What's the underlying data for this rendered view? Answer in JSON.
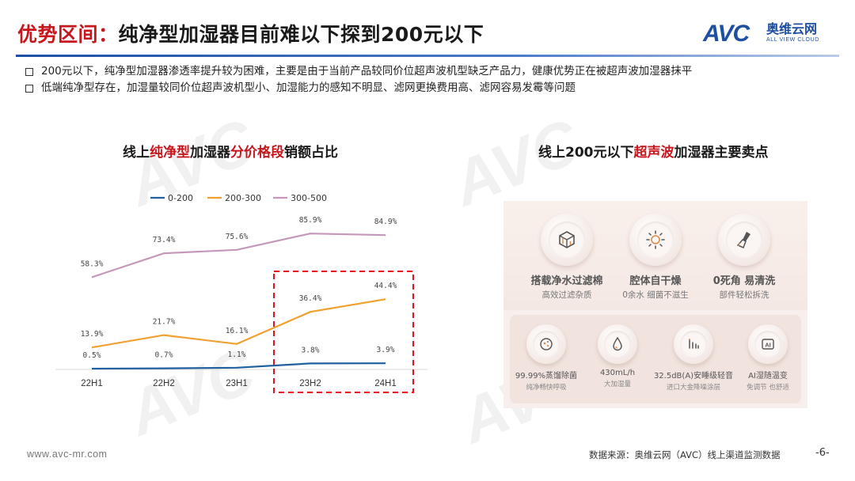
{
  "slide": {
    "title_prefix": "优势区间：",
    "title_main": "纯净型加湿器目前难以下探到200元以下",
    "bullets": [
      "200元以下，纯净型加湿器渗透率提升较为困难，主要是由于当前产品较同价位超声波机型缺乏产品力，健康优势正在被超声波加湿器抹平",
      "低端纯净型存在，加湿量较同价位超声波机型小、加湿能力的感知不明显、滤网更换费用高、滤网容易发霉等问题"
    ]
  },
  "logo": {
    "brand": "AVC",
    "cn": "奥维云网",
    "en": "ALL VIEW CLOUD"
  },
  "left_chart_title": {
    "p1": "线上",
    "p2": "纯净型",
    "p3": "加湿器",
    "p4": "分价格段",
    "p5": "销额占比"
  },
  "right_panel_title": {
    "p1": "线上200元以下",
    "p2": "超声波",
    "p3": "加湿器主要卖点"
  },
  "features_top": [
    {
      "icon": "cube-filter-icon",
      "title": "搭载净水过滤棉",
      "sub": "高效过滤杂质"
    },
    {
      "icon": "sun-dry-icon",
      "title": "腔体自干燥",
      "sub": "0余水 细菌不滋生"
    },
    {
      "icon": "brush-clean-icon",
      "title": "0死角 易清洗",
      "sub": "部件轻松拆洗"
    }
  ],
  "features_bottom": [
    {
      "icon": "sterilize-icon",
      "title": "99.99%蒸馏除菌",
      "sub": "纯净畅快呼吸"
    },
    {
      "icon": "water-drop-icon",
      "title": "430mL/h",
      "sub": "大加湿量"
    },
    {
      "icon": "sound-bars-icon",
      "title": "32.5dB(A)安睡级轻音",
      "sub": "进口大金降噪涂层"
    },
    {
      "icon": "ai-chip-icon",
      "title": "AI湿随温变",
      "sub": "免调节 也舒适"
    }
  ],
  "footer": {
    "url": "www.avc-mr.com",
    "source": "数据来源：奥维云网（AVC）线上渠道监测数据",
    "page": "-6-"
  },
  "colors": {
    "accent_red": "#c8161d",
    "brand_blue": "#1e4fa3"
  },
  "chart_data": {
    "type": "line",
    "categories": [
      "22H1",
      "22H2",
      "23H1",
      "23H2",
      "24H1"
    ],
    "series": [
      {
        "name": "0-200",
        "color": "#1f5fa0",
        "values": [
          0.5,
          0.7,
          1.1,
          3.8,
          3.9
        ],
        "labels": [
          "0.5%",
          "0.7%",
          "1.1%",
          "3.8%",
          "3.9%"
        ]
      },
      {
        "name": "200-300",
        "color": "#f0a030",
        "values": [
          13.9,
          21.7,
          16.1,
          36.4,
          44.4
        ],
        "labels": [
          "13.9%",
          "21.7%",
          "16.1%",
          "36.4%",
          "44.4%"
        ]
      },
      {
        "name": "300-500",
        "color": "#c497bb",
        "values": [
          58.3,
          73.4,
          75.6,
          85.9,
          84.9
        ],
        "labels": [
          "58.3%",
          "73.4%",
          "75.6%",
          "85.9%",
          "84.9%"
        ]
      }
    ],
    "legend_position": "top",
    "highlight": {
      "categories": [
        "23H2",
        "24H1"
      ],
      "style": "red dashed box"
    },
    "grid": false
  }
}
